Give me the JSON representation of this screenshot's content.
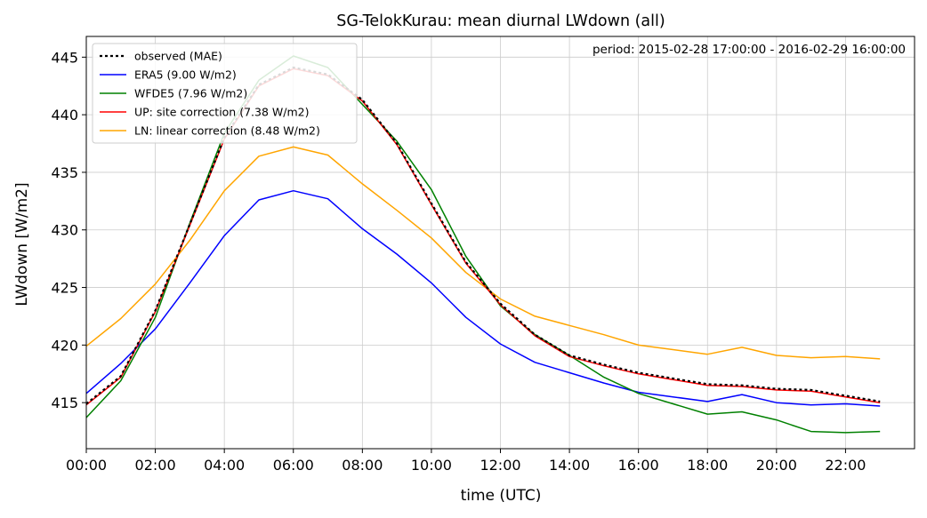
{
  "chart_data": {
    "type": "line",
    "title": "SG-TelokKurau: mean diurnal LWdown (all)",
    "xlabel": "time (UTC)",
    "ylabel": "LWdown [W/m2]",
    "annotation": "period: 2015-02-28 17:00:00 - 2016-02-29 16:00:00",
    "xlim": [
      0,
      24
    ],
    "ylim": [
      411,
      446.8
    ],
    "x_ticks": [
      0,
      2,
      4,
      6,
      8,
      10,
      12,
      14,
      16,
      18,
      20,
      22
    ],
    "x_tick_labels": [
      "00:00",
      "02:00",
      "04:00",
      "06:00",
      "08:00",
      "10:00",
      "12:00",
      "14:00",
      "16:00",
      "18:00",
      "20:00",
      "22:00"
    ],
    "y_ticks": [
      415,
      420,
      425,
      430,
      435,
      440,
      445
    ],
    "grid": true,
    "legend_position": "top-left",
    "x": [
      0,
      1,
      2,
      3,
      4,
      5,
      6,
      7,
      8,
      9,
      10,
      11,
      12,
      13,
      14,
      15,
      16,
      17,
      18,
      19,
      20,
      21,
      22,
      23
    ],
    "series": [
      {
        "name": "observed (MAE)",
        "color": "#000000",
        "style": "dotted",
        "values": [
          414.9,
          417.3,
          423.0,
          430.5,
          438.0,
          442.6,
          444.1,
          443.5,
          441.3,
          437.5,
          432.3,
          427.2,
          423.6,
          420.9,
          419.1,
          418.3,
          417.6,
          417.1,
          416.6,
          416.5,
          416.2,
          416.1,
          415.6,
          415.1
        ]
      },
      {
        "name": "ERA5 (9.00 W/m2)",
        "color": "#0000ff",
        "style": "solid",
        "values": [
          415.8,
          418.4,
          421.4,
          425.4,
          429.5,
          432.6,
          433.4,
          432.7,
          430.1,
          427.9,
          425.4,
          422.4,
          420.1,
          418.5,
          417.6,
          416.7,
          415.9,
          415.5,
          415.1,
          415.7,
          415.0,
          414.8,
          414.9,
          414.7
        ]
      },
      {
        "name": "WFDE5 (7.96 W/m2)",
        "color": "#008000",
        "style": "solid",
        "values": [
          413.7,
          416.9,
          422.4,
          430.6,
          438.4,
          443.0,
          445.1,
          444.1,
          440.9,
          437.7,
          433.5,
          427.7,
          423.4,
          420.9,
          419.1,
          417.2,
          415.8,
          414.9,
          414.0,
          414.2,
          413.5,
          412.5,
          412.4,
          412.5
        ]
      },
      {
        "name": "UP: site correction (7.38 W/m2)",
        "color": "#ff0000",
        "style": "solid",
        "values": [
          414.8,
          417.2,
          422.9,
          430.4,
          437.9,
          442.5,
          444.0,
          443.4,
          441.2,
          437.4,
          432.2,
          427.1,
          423.5,
          420.8,
          419.0,
          418.2,
          417.5,
          417.0,
          416.5,
          416.4,
          416.1,
          416.0,
          415.5,
          415.0
        ]
      },
      {
        "name": "LN: linear correction (8.48 W/m2)",
        "color": "#ffa500",
        "style": "solid",
        "values": [
          419.9,
          422.3,
          425.3,
          429.1,
          433.4,
          436.4,
          437.2,
          436.5,
          434.0,
          431.7,
          429.3,
          426.3,
          424.0,
          422.5,
          421.7,
          420.9,
          420.0,
          419.6,
          419.2,
          419.8,
          419.1,
          418.9,
          419.0,
          418.8
        ]
      }
    ]
  }
}
